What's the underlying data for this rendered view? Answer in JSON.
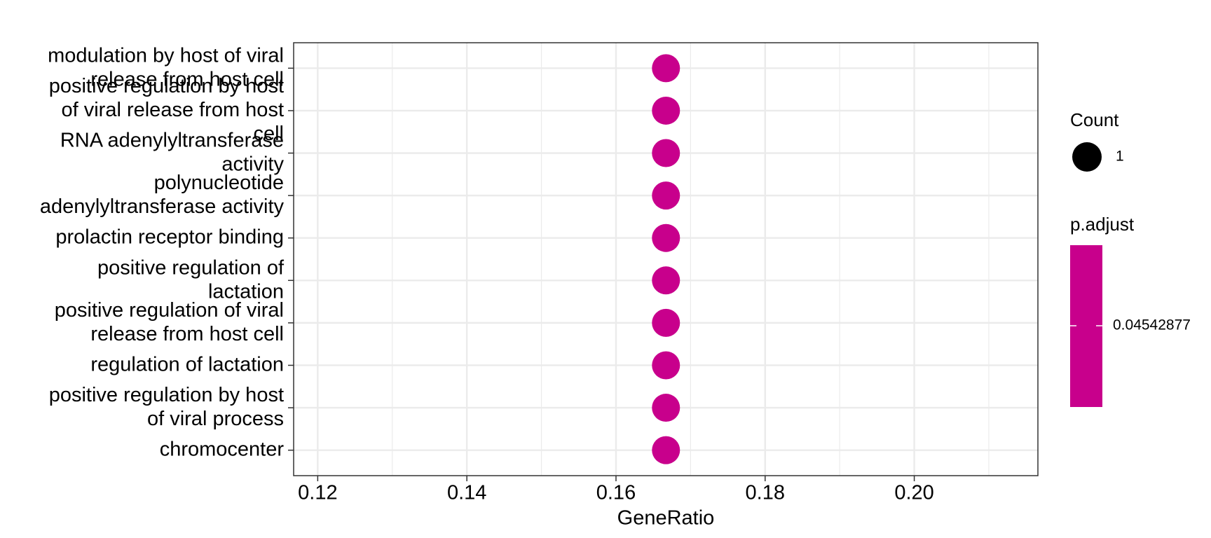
{
  "chart_data": {
    "type": "dot",
    "categories": [
      "modulation by host of viral release from host cell",
      "positive regulation by host of viral release from host cell",
      "RNA adenylyltransferase activity",
      "polynucleotide adenylyltransferase activity",
      "prolactin receptor binding",
      "positive regulation of lactation",
      "positive regulation of viral release from host cell",
      "regulation of lactation",
      "positive regulation by host of viral process",
      "chromocenter"
    ],
    "values": [
      0.1667,
      0.1667,
      0.1667,
      0.1667,
      0.1667,
      0.1667,
      0.1667,
      0.1667,
      0.1667,
      0.1667
    ],
    "counts": [
      1,
      1,
      1,
      1,
      1,
      1,
      1,
      1,
      1,
      1
    ],
    "p_adjust": [
      0.04542877,
      0.04542877,
      0.04542877,
      0.04542877,
      0.04542877,
      0.04542877,
      0.04542877,
      0.04542877,
      0.04542877,
      0.04542877
    ],
    "color": "#c8008c",
    "x_label": "GeneRatio",
    "xlim": [
      0.11677,
      0.21658
    ],
    "xticks": [
      {
        "value": 0.12,
        "label": "0.12"
      },
      {
        "value": 0.14,
        "label": "0.14"
      },
      {
        "value": 0.16,
        "label": "0.16"
      },
      {
        "value": 0.18,
        "label": "0.18"
      },
      {
        "value": 0.2,
        "label": "0.20"
      }
    ],
    "grid": true,
    "size_legend": {
      "title": "Count",
      "values": [
        1
      ]
    },
    "color_legend": {
      "title": "p.adjust",
      "ticks": [
        0.04542877
      ]
    }
  }
}
